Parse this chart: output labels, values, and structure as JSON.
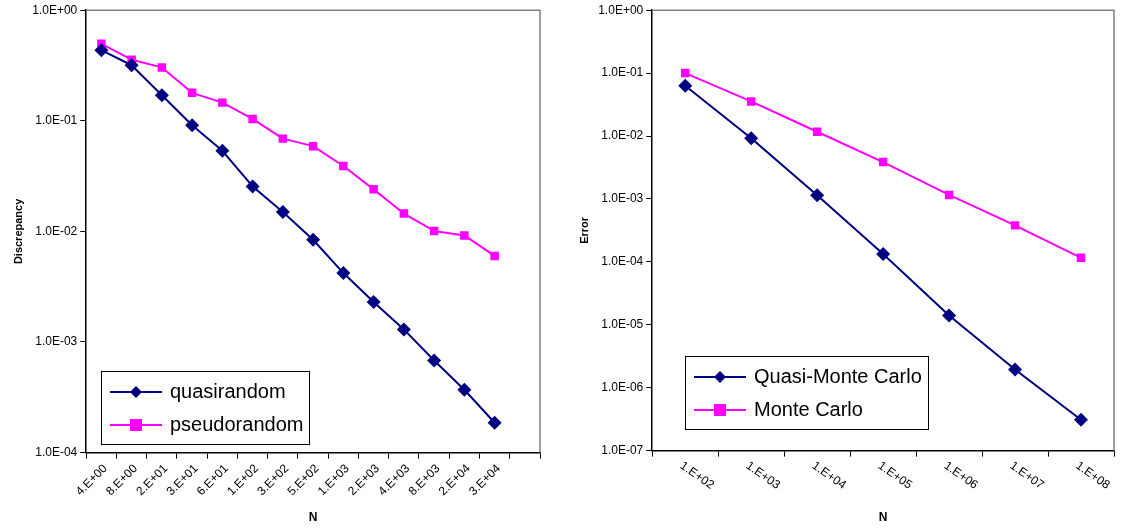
{
  "chart_data": [
    {
      "type": "line",
      "xlabel": "N",
      "ylabel": "Discrepancy",
      "log": "y",
      "legend": "bottom left",
      "ylim": [
        0.0001,
        1
      ],
      "yticks": [
        {
          "value": 0.0001,
          "label": "1.0E-04"
        },
        {
          "value": 0.001,
          "label": "1.0E-03"
        },
        {
          "value": 0.01,
          "label": "1.0E-02"
        },
        {
          "value": 0.1,
          "label": "1.0E-01"
        },
        {
          "value": 1,
          "label": "1.0E+00"
        }
      ],
      "categories": [
        "4.E+00",
        "8.E+00",
        "2.E+01",
        "3.E+01",
        "6.E+01",
        "1.E+02",
        "3.E+02",
        "5.E+02",
        "1.E+03",
        "2.E+03",
        "4.E+03",
        "8.E+03",
        "2.E+04",
        "3.E+04",
        null
      ],
      "series": [
        {
          "name": "quasirandom",
          "color": "#000080",
          "marker": "diamond",
          "values": [
            0.435,
            0.318,
            0.17,
            0.091,
            0.0535,
            0.0255,
            0.015,
            0.0084,
            0.0042,
            0.0023,
            0.0013,
            0.00068,
            0.00037,
            0.000186,
            null
          ]
        },
        {
          "name": "pseudorandom",
          "color": "#ff00ff",
          "marker": "square",
          "values": [
            0.497,
            0.357,
            0.304,
            0.179,
            0.146,
            0.104,
            0.069,
            0.059,
            0.039,
            0.024,
            0.0145,
            0.0101,
            0.0092,
            0.006,
            null
          ]
        }
      ]
    },
    {
      "type": "line",
      "xlabel": "N",
      "ylabel": "Error",
      "log": "y",
      "legend": "bottom left",
      "ylim": [
        1e-07,
        1
      ],
      "yticks": [
        {
          "value": 1e-07,
          "label": "1.0E-07"
        },
        {
          "value": 1e-06,
          "label": "1.0E-06"
        },
        {
          "value": 1e-05,
          "label": "1.0E-05"
        },
        {
          "value": 0.0001,
          "label": "1.0E-04"
        },
        {
          "value": 0.001,
          "label": "1.0E-03"
        },
        {
          "value": 0.01,
          "label": "1.0E-02"
        },
        {
          "value": 0.1,
          "label": "1.0E-01"
        },
        {
          "value": 1,
          "label": "1.0E+00"
        }
      ],
      "categories": [
        "1.E+02",
        "1.E+03",
        "1.E+04",
        "1.E+05",
        "1.E+06",
        "1.E+07",
        "1.E+08"
      ],
      "series": [
        {
          "name": "Quasi-Monte Carlo",
          "color": "#000080",
          "marker": "diamond",
          "values": [
            0.063,
            0.0092,
            0.00114,
            0.000133,
            1.4e-05,
            1.95e-06,
            3.1e-07
          ]
        },
        {
          "name": "Monte Carlo",
          "color": "#ff00ff",
          "marker": "square",
          "values": [
            0.1,
            0.0355,
            0.0117,
            0.00385,
            0.00116,
            0.00038,
            0.000116
          ]
        }
      ]
    }
  ]
}
